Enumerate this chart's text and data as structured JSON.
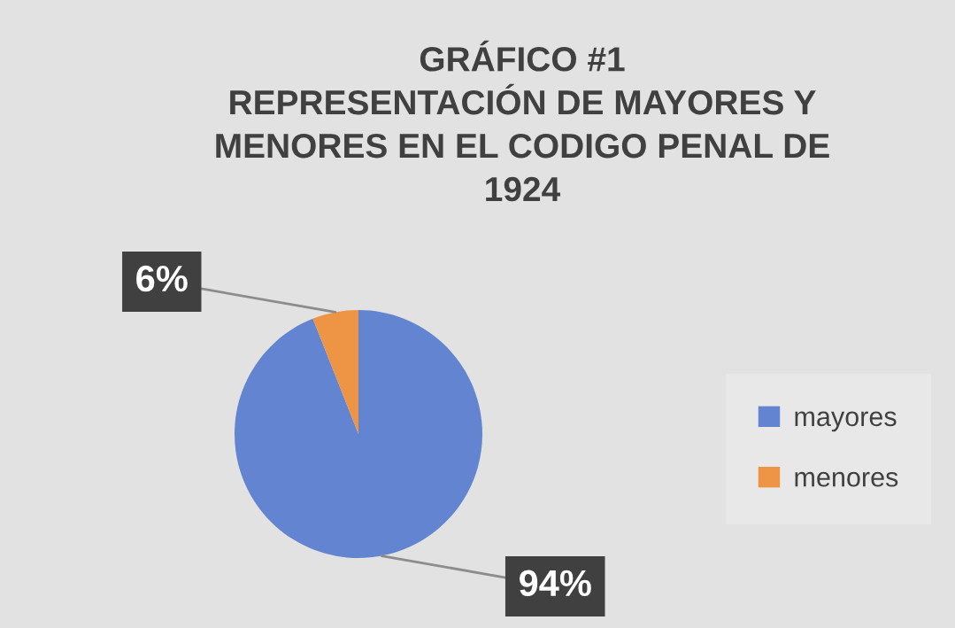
{
  "chart_data": {
    "type": "pie",
    "title": "GRÁFICO #1\nREPRESENTACIÓN DE MAYORES Y\nMENORES EN EL CODIGO PENAL DE\n1924",
    "categories": [
      "mayores",
      "menores"
    ],
    "values": [
      94,
      6
    ],
    "colors": [
      "#6384d0",
      "#ed9445"
    ],
    "value_labels": [
      "94%",
      "6%"
    ],
    "legend": "right"
  }
}
